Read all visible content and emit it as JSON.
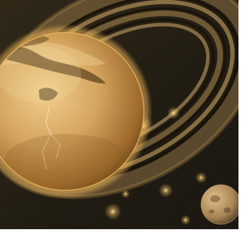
{
  "scene": {
    "subject": "planet-with-rings-and-moon",
    "colors": {
      "space": "#0b0905",
      "planet_light": "#e9c07a",
      "planet_mid": "#c28e45",
      "planet_dark": "#6b4618",
      "ring": "#c9a15e",
      "ring_dark": "#1a1207",
      "moon_light": "#d4b07a",
      "moon_dark": "#4a3a26",
      "glow": "#f3c066",
      "frame": "#ffffff"
    }
  }
}
